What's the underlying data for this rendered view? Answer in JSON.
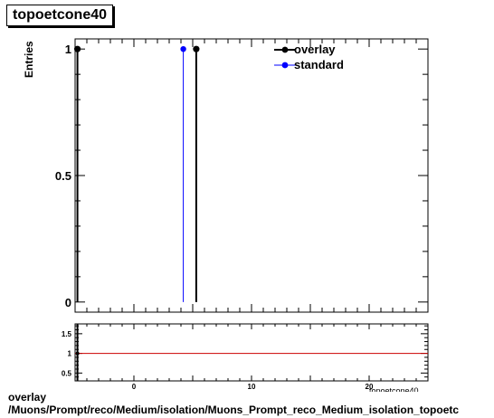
{
  "header": {
    "title": "topoetcone40"
  },
  "caption": {
    "line1": "overlay",
    "line2": "/Muons/Prompt/reco/Medium/isolation/Muons_Prompt_reco_Medium_isolation_topoetc"
  },
  "chart_data": [
    {
      "type": "scatter",
      "title": "topoetcone40",
      "xlabel": "topoetcone40",
      "ylabel": "Entries",
      "xlim": [
        -5,
        25
      ],
      "ylim": [
        -0.04,
        1.04
      ],
      "xticks": [
        0,
        10,
        20
      ],
      "yticks": [
        0,
        0.5,
        1
      ],
      "ytick_labels": [
        "0",
        "0.5",
        "1"
      ],
      "legend_position": "top-right",
      "series": [
        {
          "name": "overlay",
          "color": "#000000",
          "x": [
            -4.8,
            5.3
          ],
          "y": [
            1,
            1
          ]
        },
        {
          "name": "standard",
          "color": "#0000ff",
          "x": [
            4.2
          ],
          "y": [
            1
          ]
        }
      ]
    },
    {
      "type": "line",
      "xlim": [
        -5,
        25
      ],
      "ylim": [
        0.3,
        1.75
      ],
      "yticks": [
        0.5,
        1,
        1.5
      ],
      "ytick_labels": [
        "0.5",
        "1",
        "1.5"
      ],
      "reference_value": 1,
      "reference_color": "#cc0000",
      "series": [
        {
          "name": "",
          "color": "#000000",
          "x": [
            -4.8
          ],
          "y": [
            1
          ]
        }
      ]
    }
  ]
}
